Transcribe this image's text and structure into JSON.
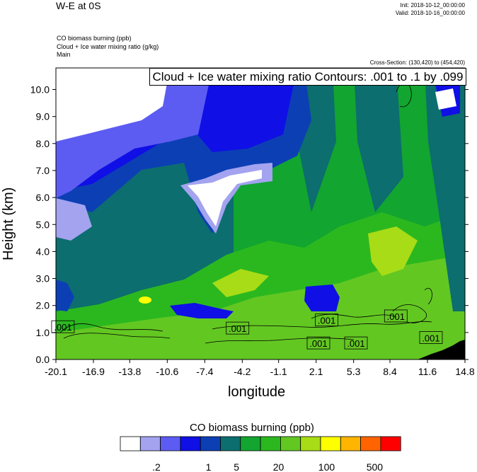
{
  "title": "W-E at 0S",
  "init": "Init: 2018-10-12_00:00:00",
  "valid": "Valid: 2018-10-16_00:00:00",
  "fields": [
    "CO biomass burning   (ppb)",
    "Cloud + Ice water mixing ratio   (g/kg)",
    "Main"
  ],
  "cross_section": "Cross-Section: (130,420) to (454,420)",
  "contour_label": "Cloud + Ice water mixing ratio Contours: .001 to .1 by .099",
  "chart_data": {
    "type": "heatmap",
    "xlabel": "longitude",
    "ylabel": "Height (km)",
    "xlim": [
      -20.1,
      14.8
    ],
    "ylim": [
      0.0,
      10.8
    ],
    "x_ticks": [
      "-20.1",
      "-16.9",
      "-13.8",
      "-10.6",
      "-7.4",
      "-4.2",
      "-1.1",
      "2.1",
      "5.3",
      "8.4",
      "11.6",
      "14.8"
    ],
    "y_ticks": [
      "0.0",
      "1.0",
      "2.0",
      "3.0",
      "4.0",
      "5.0",
      "6.0",
      "7.0",
      "8.0",
      "9.0",
      "10.0"
    ],
    "contour_labels": [
      {
        "text": ".001",
        "lon": -19.5,
        "h": 1.2
      },
      {
        "text": ".001",
        "lon": -4.6,
        "h": 1.15
      },
      {
        "text": ".001",
        "lon": 2.3,
        "h": 0.6
      },
      {
        "text": ".001",
        "lon": 3.0,
        "h": 1.45
      },
      {
        "text": ".001",
        "lon": 5.5,
        "h": 0.6
      },
      {
        "text": ".001",
        "lon": 8.9,
        "h": 1.6
      },
      {
        "text": ".001",
        "lon": 11.9,
        "h": 0.8
      }
    ],
    "colorbar": {
      "title": "CO biomass burning  (ppb)",
      "colors": [
        "#ffffff",
        "#a3a3f0",
        "#5c5cf2",
        "#0f0fe6",
        "#0c3fb4",
        "#0c6e6e",
        "#12a530",
        "#2bb81f",
        "#63c722",
        "#a8dc16",
        "#ffff00",
        "#ffb400",
        "#ff6400",
        "#ff0000"
      ],
      "labels": [
        ".2",
        "1",
        "5",
        "20",
        "100",
        "500"
      ]
    }
  }
}
